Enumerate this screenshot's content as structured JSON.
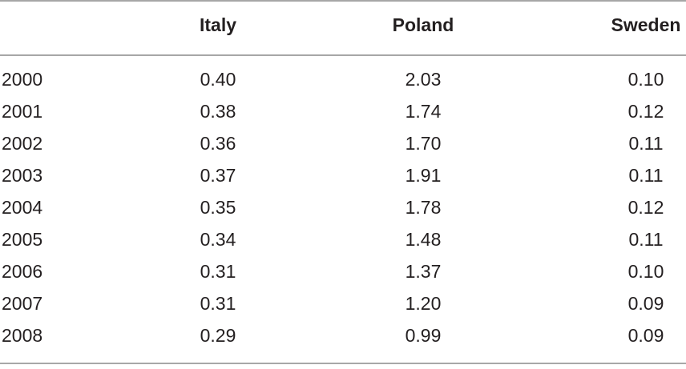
{
  "table": {
    "columns": [
      "Italy",
      "Poland",
      "Sweden"
    ],
    "rows": [
      [
        "2000",
        "0.40",
        "2.03",
        "0.10"
      ],
      [
        "2001",
        "0.38",
        "1.74",
        "0.12"
      ],
      [
        "2002",
        "0.36",
        "1.70",
        "0.11"
      ],
      [
        "2003",
        "0.37",
        "1.91",
        "0.11"
      ],
      [
        "2004",
        "0.35",
        "1.78",
        "0.12"
      ],
      [
        "2005",
        "0.34",
        "1.48",
        "0.11"
      ],
      [
        "2006",
        "0.31",
        "1.37",
        "0.10"
      ],
      [
        "2007",
        "0.31",
        "1.20",
        "0.09"
      ],
      [
        "2008",
        "0.29",
        "0.99",
        "0.09"
      ]
    ]
  }
}
